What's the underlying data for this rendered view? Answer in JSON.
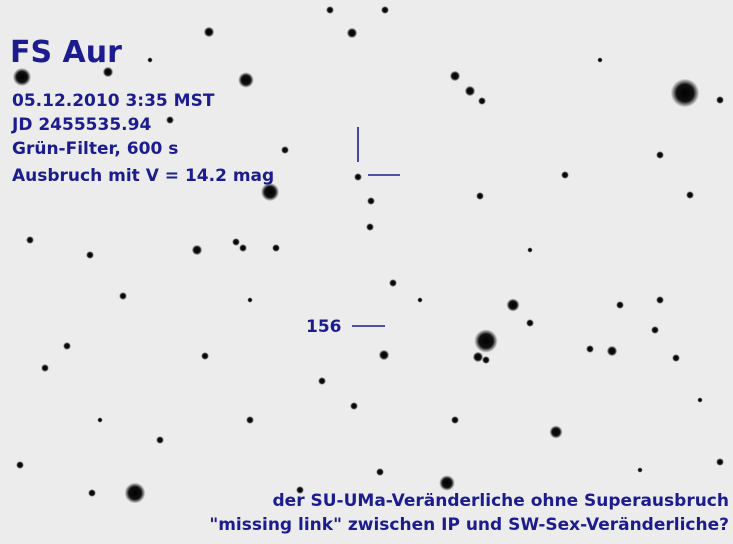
{
  "header": {
    "title": "FS Aur",
    "lines": [
      "05.12.2010 3:35 MST",
      "JD 2455535.94",
      "Grün-Filter, 600 s",
      "Ausbruch mit V = 14.2 mag"
    ]
  },
  "labels": {
    "comparison_star": "156"
  },
  "footer": {
    "lines": [
      "der SU-UMa-Veränderliche ohne Superausbruch",
      "\"missing link\" zwischen IP und SW-Sex-Veränderliche?"
    ]
  }
}
